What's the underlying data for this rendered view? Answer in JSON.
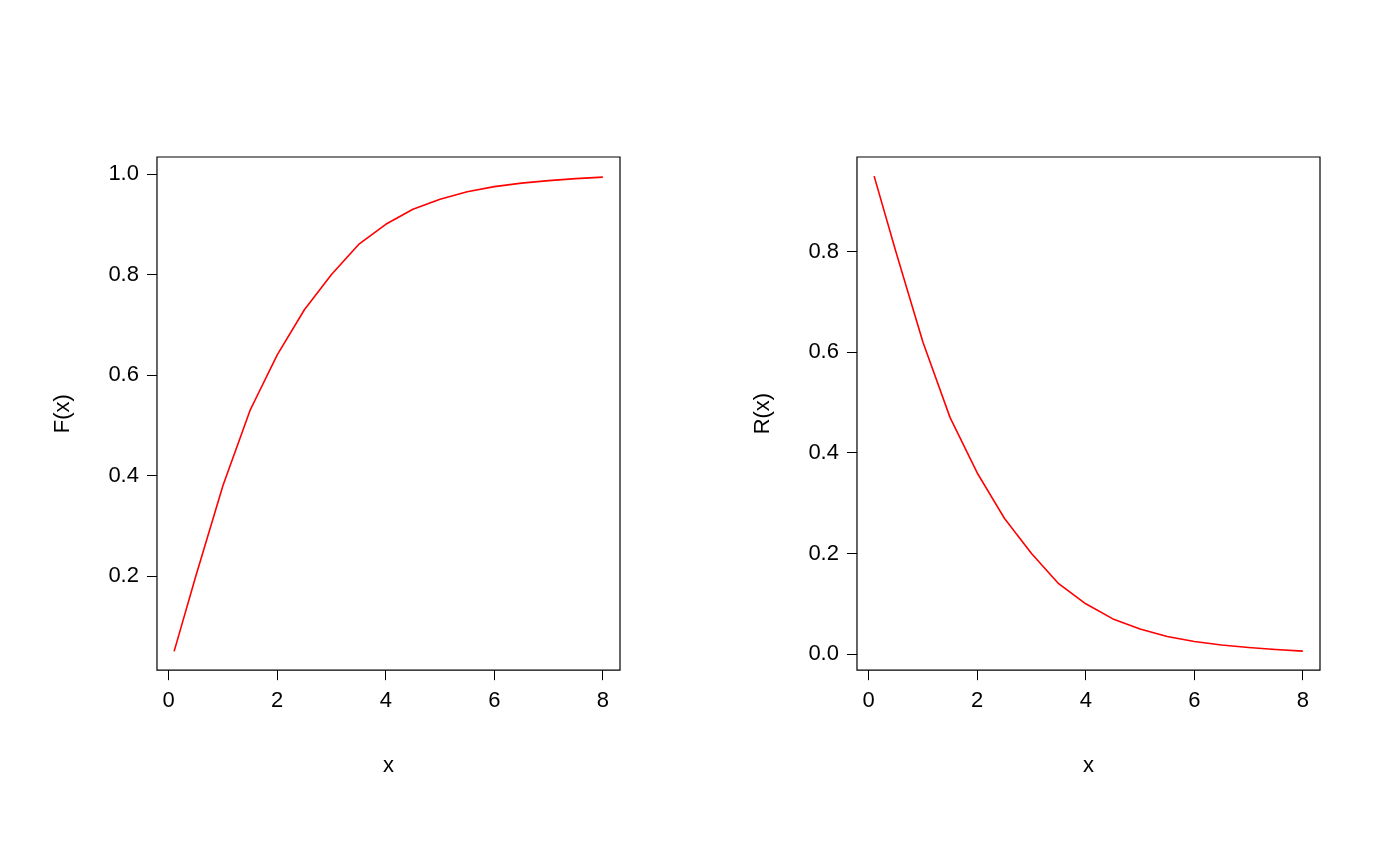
{
  "chart_data": [
    {
      "type": "line",
      "xlabel": "x",
      "ylabel": "F(x)",
      "x": [
        0.1,
        0.5,
        1,
        1.5,
        2,
        2.5,
        3,
        3.5,
        4,
        4.5,
        5,
        5.5,
        6,
        6.5,
        7,
        7.5,
        8
      ],
      "series": [
        {
          "color": "#ff0000",
          "values": [
            0.05,
            0.2,
            0.38,
            0.53,
            0.64,
            0.73,
            0.8,
            0.86,
            0.9,
            0.93,
            0.95,
            0.965,
            0.975,
            0.982,
            0.987,
            0.991,
            0.994
          ]
        }
      ],
      "xlim": [
        -0.216,
        8.316
      ],
      "ylim": [
        0.0125,
        1.034
      ],
      "xticks": [
        0,
        2,
        4,
        6,
        8
      ],
      "yticks": [
        0.2,
        0.4,
        0.6,
        0.8,
        {
          "value": 1,
          "label": "1.0"
        }
      ]
    },
    {
      "type": "line",
      "xlabel": "x",
      "ylabel": "R(x)",
      "x": [
        0.1,
        0.5,
        1,
        1.5,
        2,
        2.5,
        3,
        3.5,
        4,
        4.5,
        5,
        5.5,
        6,
        6.5,
        7,
        7.5,
        8
      ],
      "series": [
        {
          "color": "#ff0000",
          "values": [
            0.95,
            0.8,
            0.62,
            0.47,
            0.36,
            0.27,
            0.2,
            0.14,
            0.1,
            0.07,
            0.05,
            0.035,
            0.025,
            0.018,
            0.013,
            0.009,
            0.006
          ]
        }
      ],
      "xlim": [
        -0.216,
        8.316
      ],
      "ylim": [
        -0.032,
        0.988
      ],
      "xticks": [
        0,
        2,
        4,
        6,
        8
      ],
      "yticks": [
        {
          "value": 0,
          "label": "0.0"
        },
        0.2,
        0.4,
        0.6,
        0.8
      ]
    }
  ]
}
